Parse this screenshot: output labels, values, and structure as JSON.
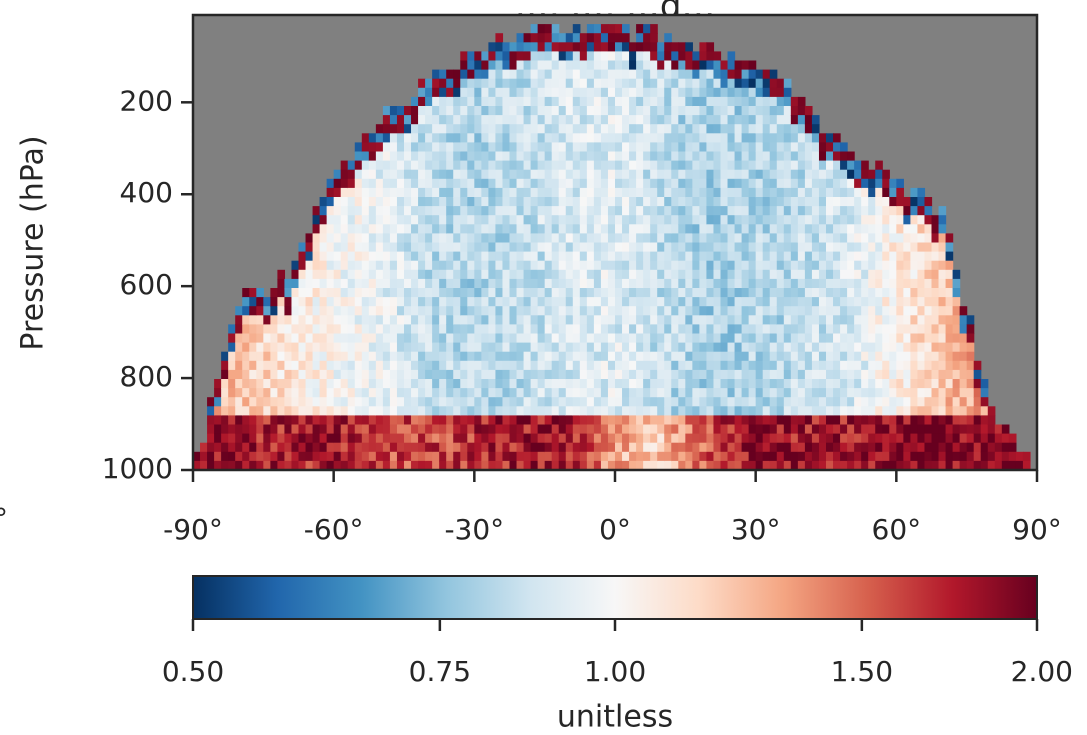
{
  "chart_data": [
    {
      "type": "heatmap",
      "title": "",
      "xlabel": "",
      "ylabel": "Pressure (hPa)",
      "xlim": [
        -90,
        90
      ],
      "ylim": [
        1000,
        10
      ],
      "x_ticks": [
        -90,
        -60,
        -30,
        0,
        30,
        60,
        90
      ],
      "x_tick_labels": [
        "-90°",
        "-60°",
        "-30°",
        "0°",
        "30°",
        "60°",
        "90°"
      ],
      "y_ticks": [
        200,
        400,
        600,
        800,
        1000
      ],
      "y_tick_labels": [
        "200",
        "400",
        "600",
        "800",
        "1000"
      ],
      "missing_color": "#808080",
      "colormap": "RdBu_r",
      "note_left_clipped_label": "°",
      "regions": {
        "latitudes": [
          -90,
          -80,
          -70,
          -60,
          -50,
          -40,
          -30,
          -20,
          -10,
          0,
          10,
          20,
          30,
          40,
          50,
          60,
          70,
          80,
          90
        ],
        "data_top_pressure": [
          1000,
          620,
          580,
          350,
          250,
          150,
          80,
          50,
          40,
          40,
          60,
          90,
          120,
          200,
          300,
          380,
          430,
          870,
          1000
        ],
        "surface_band_ratio": [
          2.0,
          1.8,
          1.7,
          1.8,
          1.6,
          1.6,
          1.7,
          1.8,
          1.8,
          1.3,
          1.2,
          1.6,
          1.9,
          1.8,
          1.8,
          1.9,
          1.9,
          1.9,
          2.0
        ],
        "mid_ratio": [
          1.3,
          1.2,
          1.1,
          1.0,
          0.95,
          0.85,
          0.82,
          0.85,
          0.9,
          0.92,
          0.85,
          0.8,
          0.82,
          0.85,
          0.9,
          1.05,
          1.2,
          1.4,
          1.5
        ]
      }
    },
    {
      "type": "colorbar",
      "label": "unitless",
      "ticks": [
        0.5,
        0.75,
        1.0,
        1.5,
        2.0
      ],
      "tick_labels": [
        "0.50",
        "0.75",
        "1.00",
        "1.50",
        "2.00"
      ],
      "scale": "log",
      "range": [
        0.5,
        2.0
      ],
      "colors": [
        "#053061",
        "#2166ac",
        "#4393c3",
        "#92c5de",
        "#d1e5f0",
        "#f7f7f7",
        "#fddbc7",
        "#f4a582",
        "#d6604d",
        "#b2182b",
        "#67001f"
      ]
    }
  ],
  "title_partial": "…, …, …g…"
}
